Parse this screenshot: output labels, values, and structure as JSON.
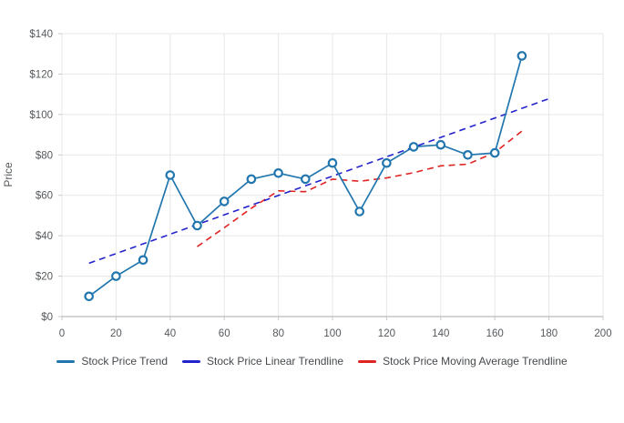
{
  "chart_data": {
    "type": "line",
    "title": "",
    "xlabel": "",
    "ylabel": "Price",
    "xlim": [
      0,
      200
    ],
    "ylim": [
      0,
      140
    ],
    "x_ticks": [
      0,
      20,
      40,
      60,
      80,
      100,
      120,
      140,
      160,
      180,
      200
    ],
    "x_tick_labels": [
      "0",
      "20",
      "40",
      "60",
      "80",
      "100",
      "120",
      "140",
      "160",
      "180",
      "200"
    ],
    "y_ticks": [
      0,
      20,
      40,
      60,
      80,
      100,
      120,
      140
    ],
    "y_tick_labels": [
      "$0",
      "$20",
      "$40",
      "$60",
      "$80",
      "$100",
      "$120",
      "$140"
    ],
    "grid": true,
    "legend_position": "bottom-center",
    "series": [
      {
        "name": "Stock Price Trend",
        "type": "line",
        "markers": true,
        "dash": "solid",
        "color": "#2176ae",
        "x": [
          10,
          20,
          30,
          40,
          50,
          60,
          70,
          80,
          90,
          100,
          110,
          120,
          130,
          140,
          150,
          160,
          170
        ],
        "values": [
          10,
          20,
          28,
          70,
          45,
          57,
          68,
          71,
          68,
          76,
          52,
          76,
          84,
          85,
          80,
          81,
          129
        ]
      },
      {
        "name": "Stock Price Linear Trendline",
        "type": "line",
        "markers": false,
        "dash": "dashed",
        "color": "#2323cc",
        "x": [
          10,
          180
        ],
        "values": [
          26.4,
          107.8
        ]
      },
      {
        "name": "Stock Price Moving Average Trendline",
        "type": "line",
        "markers": false,
        "dash": "dashed",
        "color": "#e02424",
        "x": [
          50,
          60,
          70,
          80,
          90,
          100,
          110,
          120,
          130,
          140,
          150,
          160,
          170
        ],
        "values": [
          34.6,
          44,
          53.6,
          62.2,
          61.8,
          68,
          67,
          68.6,
          71.2,
          74.6,
          75.4,
          81.2,
          91.8
        ]
      }
    ],
    "colors": {
      "gridline": "#e7e7e7",
      "axis_line": "#a8a8a8",
      "tick_text": "#55595c",
      "legend_text": "#46494c",
      "background": "#ffffff"
    }
  }
}
